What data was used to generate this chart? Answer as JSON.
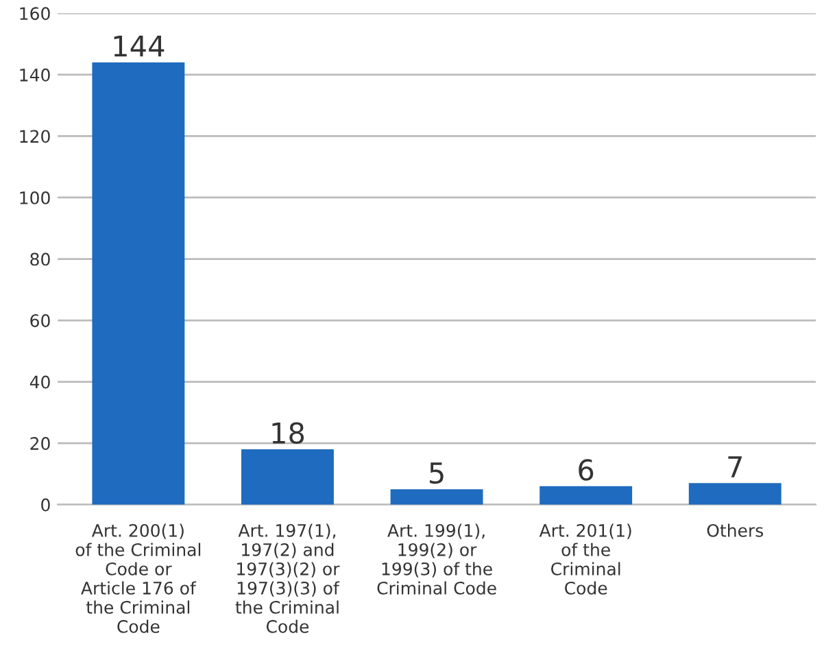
{
  "chart_data": {
    "type": "bar",
    "categories": [
      "Art. 200(1)\nof the Criminal\nCode or\nArticle 176 of\nthe Criminal\nCode",
      "Art. 197(1),\n197(2) and\n197(3)(2) or\n197(3)(3) of\nthe Criminal\nCode",
      "Art. 199(1),\n199(2) or\n199(3) of the\nCriminal Code",
      "Art. 201(1)\nof the\nCriminal\nCode",
      "Others"
    ],
    "values": [
      144,
      18,
      5,
      6,
      7
    ],
    "color": "#1f6bbf",
    "ylim": [
      0,
      160
    ],
    "yticks": [
      0,
      20,
      40,
      60,
      80,
      100,
      120,
      140,
      160
    ],
    "grid": "y",
    "data_labels": true
  }
}
